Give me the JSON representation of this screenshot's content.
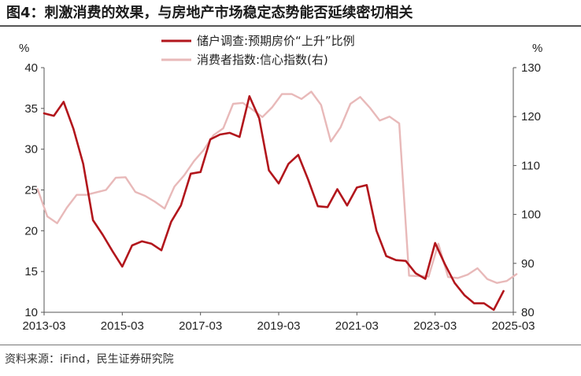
{
  "title": "图4：刺激消费的效果，与房地产市场稳定态势能否延续密切相关",
  "source": "资料来源：iFind，民生证券研究院",
  "chart_data": {
    "type": "line",
    "x_ticks": [
      "2013-03",
      "2015-03",
      "2017-03",
      "2019-03",
      "2021-03",
      "2023-03",
      "2025-03"
    ],
    "y_left": {
      "unit": "%",
      "min": 10,
      "max": 40,
      "ticks": [
        10,
        15,
        20,
        25,
        30,
        35,
        40
      ]
    },
    "y_right": {
      "unit": "%",
      "min": 80,
      "max": 130,
      "ticks": [
        80,
        90,
        100,
        110,
        120,
        130
      ]
    },
    "legend_position": "top-center",
    "grid": false,
    "series": [
      {
        "name": "储户调查:预期房价“上升”比例",
        "axis": "left",
        "color": "#b2161c",
        "points": [
          [
            "2013-03",
            34.4
          ],
          [
            "2013-06",
            34.1
          ],
          [
            "2013-09",
            35.8
          ],
          [
            "2013-12",
            32.5
          ],
          [
            "2014-03",
            28.2
          ],
          [
            "2014-06",
            21.3
          ],
          [
            "2014-09",
            19.5
          ],
          [
            "2014-12",
            17.5
          ],
          [
            "2015-03",
            15.6
          ],
          [
            "2015-06",
            18.2
          ],
          [
            "2015-09",
            18.7
          ],
          [
            "2015-12",
            18.4
          ],
          [
            "2016-03",
            17.6
          ],
          [
            "2016-06",
            21.1
          ],
          [
            "2016-09",
            23.1
          ],
          [
            "2016-12",
            27.0
          ],
          [
            "2017-03",
            27.2
          ],
          [
            "2017-06",
            31.2
          ],
          [
            "2017-09",
            31.8
          ],
          [
            "2017-12",
            32.0
          ],
          [
            "2018-03",
            31.5
          ],
          [
            "2018-06",
            36.5
          ],
          [
            "2018-09",
            33.8
          ],
          [
            "2018-12",
            27.4
          ],
          [
            "2019-03",
            25.8
          ],
          [
            "2019-06",
            28.2
          ],
          [
            "2019-09",
            29.3
          ],
          [
            "2019-12",
            26.3
          ],
          [
            "2020-03",
            23.0
          ],
          [
            "2020-06",
            22.9
          ],
          [
            "2020-09",
            25.1
          ],
          [
            "2020-12",
            23.1
          ],
          [
            "2021-03",
            25.3
          ],
          [
            "2021-06",
            25.6
          ],
          [
            "2021-09",
            20.0
          ],
          [
            "2021-12",
            16.9
          ],
          [
            "2022-03",
            16.4
          ],
          [
            "2022-06",
            16.3
          ],
          [
            "2022-09",
            14.8
          ],
          [
            "2022-12",
            14.1
          ],
          [
            "2023-03",
            18.5
          ],
          [
            "2023-06",
            15.9
          ],
          [
            "2023-09",
            13.6
          ],
          [
            "2023-12",
            12.1
          ],
          [
            "2024-03",
            11.1
          ],
          [
            "2024-06",
            11.1
          ],
          [
            "2024-09",
            10.3
          ],
          [
            "2024-12",
            12.6
          ]
        ]
      },
      {
        "name": "消费者指数:信心指数(右)",
        "axis": "right",
        "color": "#e8b9b9",
        "points": [
          [
            "2013-01",
            105.2
          ],
          [
            "2013-04",
            99.6
          ],
          [
            "2013-07",
            98.2
          ],
          [
            "2013-10",
            101.4
          ],
          [
            "2014-01",
            104.0
          ],
          [
            "2014-04",
            104.0
          ],
          [
            "2014-07",
            104.5
          ],
          [
            "2014-10",
            105.0
          ],
          [
            "2015-01",
            107.5
          ],
          [
            "2015-04",
            107.6
          ],
          [
            "2015-07",
            104.6
          ],
          [
            "2015-10",
            103.8
          ],
          [
            "2016-01",
            102.6
          ],
          [
            "2016-04",
            101.2
          ],
          [
            "2016-07",
            105.7
          ],
          [
            "2016-10",
            108.0
          ],
          [
            "2017-01",
            110.9
          ],
          [
            "2017-04",
            113.2
          ],
          [
            "2017-07",
            116.2
          ],
          [
            "2017-10",
            117.6
          ],
          [
            "2018-01",
            122.6
          ],
          [
            "2018-04",
            122.8
          ],
          [
            "2018-07",
            121.4
          ],
          [
            "2018-10",
            119.9
          ],
          [
            "2019-01",
            121.9
          ],
          [
            "2019-04",
            124.6
          ],
          [
            "2019-07",
            124.6
          ],
          [
            "2019-10",
            123.6
          ],
          [
            "2020-01",
            125.1
          ],
          [
            "2020-04",
            122.4
          ],
          [
            "2020-07",
            114.9
          ],
          [
            "2020-10",
            117.8
          ],
          [
            "2021-01",
            122.6
          ],
          [
            "2021-04",
            124.0
          ],
          [
            "2021-07",
            121.8
          ],
          [
            "2021-10",
            119.2
          ],
          [
            "2022-01",
            120.0
          ],
          [
            "2022-04",
            118.6
          ],
          [
            "2022-07",
            87.5
          ],
          [
            "2022-10",
            87.4
          ],
          [
            "2023-01",
            87.3
          ],
          [
            "2023-04",
            94.0
          ],
          [
            "2023-07",
            87.2
          ],
          [
            "2023-10",
            87.0
          ],
          [
            "2024-01",
            87.7
          ],
          [
            "2024-04",
            89.0
          ],
          [
            "2024-07",
            86.8
          ],
          [
            "2024-10",
            86.0
          ],
          [
            "2025-01",
            86.4
          ],
          [
            "2025-04",
            87.8
          ]
        ]
      }
    ]
  }
}
